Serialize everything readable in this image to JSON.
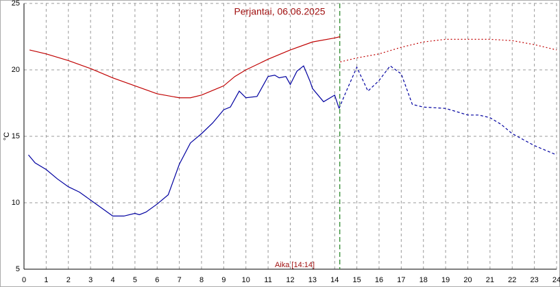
{
  "chart_data": {
    "type": "line",
    "title": "Perjantai, 06.06.2025",
    "y_label": "°C",
    "x_label": "Aika [14:14]",
    "xlim": [
      0,
      24
    ],
    "xticks": [
      0,
      1,
      2,
      3,
      4,
      5,
      6,
      7,
      8,
      9,
      10,
      11,
      12,
      13,
      14,
      15,
      16,
      17,
      18,
      19,
      20,
      21,
      22,
      23,
      24
    ],
    "ylim": [
      5,
      25
    ],
    "yticks": [
      5,
      10,
      15,
      20,
      25
    ],
    "grid": true,
    "now_x": 14.23,
    "now_color": "#2e8b2e",
    "series": [
      {
        "color": "#c00000",
        "dash": "solid",
        "x": [
          0.25,
          1,
          2,
          3,
          4,
          5,
          6,
          7,
          7.5,
          8,
          9,
          9.5,
          10,
          11,
          12,
          13,
          14,
          14.25
        ],
        "values": [
          21.5,
          21.2,
          20.7,
          20.1,
          19.4,
          18.8,
          18.2,
          17.9,
          17.9,
          18.1,
          18.8,
          19.5,
          20.0,
          20.8,
          21.5,
          22.1,
          22.4,
          22.5
        ]
      },
      {
        "color": "#c00000",
        "dash": "dotted",
        "x": [
          14.25,
          15,
          16,
          17,
          18,
          19,
          20,
          21,
          22,
          23,
          24
        ],
        "values": [
          20.6,
          20.9,
          21.2,
          21.7,
          22.1,
          22.3,
          22.3,
          22.3,
          22.2,
          21.9,
          21.5
        ]
      },
      {
        "color": "#0000a0",
        "dash": "solid",
        "x": [
          0.2,
          0.5,
          1,
          1.5,
          2,
          2.5,
          3,
          3.5,
          4,
          4.5,
          5,
          5.2,
          5.5,
          6,
          6.5,
          7,
          7.5,
          8,
          8.5,
          9,
          9.3,
          9.7,
          10,
          10.5,
          11,
          11.3,
          11.5,
          11.8,
          12,
          12.3,
          12.6,
          12.9,
          13,
          13.5,
          14,
          14.2
        ],
        "values": [
          13.6,
          13.0,
          12.5,
          11.8,
          11.2,
          10.8,
          10.2,
          9.6,
          9.0,
          9.0,
          9.2,
          9.1,
          9.3,
          9.9,
          10.6,
          12.9,
          14.5,
          15.2,
          16.0,
          17.0,
          17.2,
          18.4,
          17.9,
          18.0,
          19.5,
          19.6,
          19.4,
          19.5,
          18.9,
          19.9,
          20.3,
          19.1,
          18.6,
          17.6,
          18.1,
          17.1
        ]
      },
      {
        "color": "#0000a0",
        "dash": "dashed",
        "x": [
          14.2,
          14.5,
          15,
          15.5,
          16,
          16.5,
          17,
          17.5,
          18,
          19,
          20,
          20.5,
          21,
          21.5,
          22,
          23,
          24
        ],
        "values": [
          17.1,
          18.3,
          20.2,
          18.4,
          19.2,
          20.3,
          19.7,
          17.4,
          17.2,
          17.1,
          16.6,
          16.6,
          16.4,
          15.9,
          15.2,
          14.3,
          13.6
        ]
      }
    ]
  }
}
